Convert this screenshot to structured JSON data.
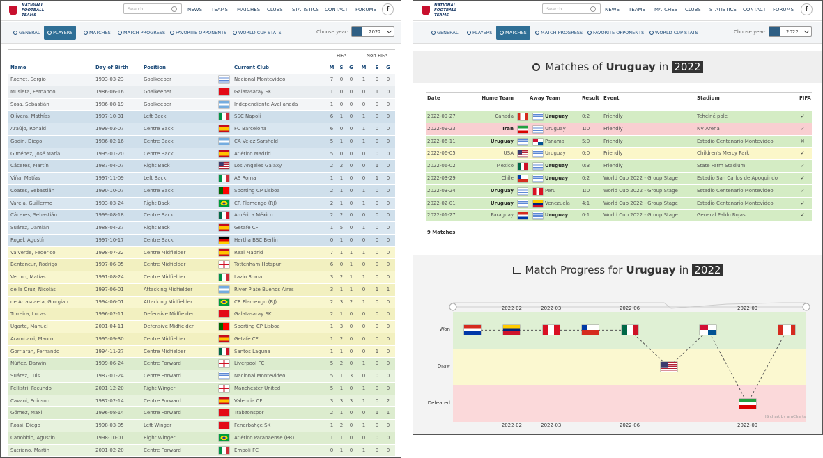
{
  "nav": {
    "logo": [
      "NATIONAL",
      "FOOTBALL",
      "TEAMS"
    ],
    "search": "Search...",
    "links": [
      "NEWS",
      "TEAMS",
      "MATCHES",
      "CLUBS",
      "STATISTICS",
      "CONTACT",
      "FORUMS"
    ],
    "social": "f"
  },
  "tabs": {
    "items": [
      "GENERAL",
      "PLAYERS",
      "MATCHES",
      "MATCH PROGRESS",
      "FAVORITE OPPONENTS",
      "WORLD CUP STATS"
    ],
    "year_label": "Choose year:",
    "year": "2022"
  },
  "players": {
    "groups": [
      "FIFA",
      "Non FIFA"
    ],
    "columns": [
      "Name",
      "Day of Birth",
      "Position",
      "Current Club"
    ],
    "stat_columns": [
      "M",
      "S",
      "G",
      "M",
      "S",
      "G"
    ],
    "rows": [
      [
        "Rochet, Sergio",
        "1993-03-23",
        "Goalkeeper",
        "Nacional Montevideo",
        7,
        0,
        0,
        1,
        0,
        0
      ],
      [
        "Muslera, Fernando",
        "1986-06-16",
        "Goalkeeper",
        "Galatasaray SK",
        1,
        0,
        0,
        0,
        1,
        0
      ],
      [
        "Sosa, Sebastián",
        "1986-08-19",
        "Goalkeeper",
        "Independiente Avellaneda",
        1,
        0,
        0,
        0,
        0,
        0
      ],
      [
        "Olivera, Mathías",
        "1997-10-31",
        "Left Back",
        "SSC Napoli",
        6,
        1,
        0,
        1,
        0,
        0
      ],
      [
        "Araújo, Ronald",
        "1999-03-07",
        "Centre Back",
        "FC Barcelona",
        6,
        0,
        0,
        1,
        0,
        0
      ],
      [
        "Godín, Diego",
        "1986-02-16",
        "Centre Back",
        "CA Vélez Sarsfield",
        5,
        1,
        0,
        1,
        0,
        0
      ],
      [
        "Giménez, José María",
        "1995-01-20",
        "Centre Back",
        "Atlético Madrid",
        5,
        0,
        0,
        0,
        0,
        0
      ],
      [
        "Cáceres, Martín",
        "1987-04-07",
        "Right Back",
        "Los Angeles Galaxy",
        2,
        2,
        0,
        0,
        1,
        0
      ],
      [
        "Viña, Matías",
        "1997-11-09",
        "Left Back",
        "AS Roma",
        1,
        1,
        0,
        0,
        1,
        0
      ],
      [
        "Coates, Sebastián",
        "1990-10-07",
        "Centre Back",
        "Sporting CP Lisboa",
        2,
        1,
        0,
        1,
        0,
        0
      ],
      [
        "Varela, Guillermo",
        "1993-03-24",
        "Right Back",
        "CR Flamengo (RJ)",
        2,
        1,
        0,
        1,
        0,
        0
      ],
      [
        "Cáceres, Sebastián",
        "1999-08-18",
        "Centre Back",
        "América México",
        2,
        2,
        0,
        0,
        0,
        0
      ],
      [
        "Suárez, Damián",
        "1988-04-27",
        "Right Back",
        "Getafe CF",
        1,
        5,
        0,
        1,
        0,
        0
      ],
      [
        "Rogel, Agustín",
        "1997-10-17",
        "Centre Back",
        "Hertha BSC Berlin",
        0,
        1,
        0,
        0,
        0,
        0
      ],
      [
        "Valverde, Federico",
        "1998-07-22",
        "Centre Midfielder",
        "Real Madrid",
        7,
        1,
        1,
        1,
        0,
        0
      ],
      [
        "Bentancur, Rodrigo",
        "1997-06-05",
        "Centre Midfielder",
        "Tottenham Hotspur",
        6,
        0,
        1,
        0,
        0,
        0
      ],
      [
        "Vecino, Matías",
        "1991-08-24",
        "Centre Midfielder",
        "Lazio Roma",
        3,
        2,
        1,
        1,
        0,
        0
      ],
      [
        "de la Cruz, Nicolás",
        "1997-06-01",
        "Attacking Midfielder",
        "River Plate Buenos Aires",
        3,
        1,
        1,
        0,
        1,
        1
      ],
      [
        "de Arrascaeta, Giorgian",
        "1994-06-01",
        "Attacking Midfielder",
        "CR Flamengo (RJ)",
        2,
        3,
        2,
        1,
        0,
        0
      ],
      [
        "Torreira, Lucas",
        "1996-02-11",
        "Defensive Midfielder",
        "Galatasaray SK",
        2,
        1,
        0,
        0,
        0,
        0
      ],
      [
        "Ugarte, Manuel",
        "2001-04-11",
        "Defensive Midfielder",
        "Sporting CP Lisboa",
        1,
        3,
        0,
        0,
        0,
        0
      ],
      [
        "Arambarri, Mauro",
        "1995-09-30",
        "Centre Midfielder",
        "Getafe CF",
        1,
        2,
        0,
        0,
        0,
        0
      ],
      [
        "Gorriarán, Fernando",
        "1994-11-27",
        "Centre Midfielder",
        "Santos Laguna",
        1,
        1,
        0,
        0,
        1,
        0
      ],
      [
        "Núñez, Darwin",
        "1999-06-24",
        "Centre Forward",
        "Liverpool FC",
        5,
        2,
        0,
        1,
        0,
        0
      ],
      [
        "Suárez, Luis",
        "1987-01-24",
        "Centre Forward",
        "Nacional Montevideo",
        5,
        1,
        3,
        0,
        0,
        0
      ],
      [
        "Pellistri, Facundo",
        "2001-12-20",
        "Right Winger",
        "Manchester United",
        5,
        1,
        0,
        1,
        0,
        0
      ],
      [
        "Cavani, Edinson",
        "1987-02-14",
        "Centre Forward",
        "Valencia CF",
        3,
        3,
        3,
        1,
        0,
        2
      ],
      [
        "Gómez, Maxi",
        "1996-08-14",
        "Centre Forward",
        "Trabzonspor",
        2,
        1,
        0,
        0,
        1,
        1
      ],
      [
        "Rossi, Diego",
        "1998-03-05",
        "Left Winger",
        "Fenerbahçe SK",
        1,
        2,
        0,
        1,
        0,
        0
      ],
      [
        "Canobbio, Agustín",
        "1998-10-01",
        "Right Winger",
        "Atlético Paranaense (PR)",
        1,
        1,
        0,
        0,
        0,
        0
      ],
      [
        "Satriano, Martín",
        "2001-02-20",
        "Centre Forward",
        "Empoli FC",
        0,
        1,
        0,
        1,
        0,
        0
      ]
    ]
  },
  "matches": {
    "title": {
      "prefix": "Matches of",
      "team": "Uruguay",
      "mid": "in",
      "year": "2022"
    },
    "columns": [
      "Date",
      "Home Team",
      "Away Team",
      "Result",
      "Event",
      "Stadium",
      "FIFA"
    ],
    "rows": [
      [
        "2022-09-27",
        "Canada",
        "Uruguay",
        "0:2",
        "Friendly",
        "Tehelné pole",
        "✓"
      ],
      [
        "2022-09-23",
        "Iran",
        "Uruguay",
        "1:0",
        "Friendly",
        "NV Arena",
        "✓"
      ],
      [
        "2022-06-11",
        "Uruguay",
        "Panama",
        "5:0",
        "Friendly",
        "Estadio Centenario Montevideo",
        "✕"
      ],
      [
        "2022-06-05",
        "USA",
        "Uruguay",
        "0:0",
        "Friendly",
        "Children's Mercy Park",
        "✓"
      ],
      [
        "2022-06-02",
        "Mexico",
        "Uruguay",
        "0:3",
        "Friendly",
        "State Farm Stadium",
        "✓"
      ],
      [
        "2022-03-29",
        "Chile",
        "Uruguay",
        "0:2",
        "World Cup 2022 - Group Stage",
        "Estadio San Carlos de Apoquindo",
        "✓"
      ],
      [
        "2022-03-24",
        "Uruguay",
        "Peru",
        "1:0",
        "World Cup 2022 - Group Stage",
        "Estadio Centenario Montevideo",
        "✓"
      ],
      [
        "2022-02-01",
        "Uruguay",
        "Venezuela",
        "4:1",
        "World Cup 2022 - Group Stage",
        "Estadio Centenario Montevideo",
        "✓"
      ],
      [
        "2022-01-27",
        "Paraguay",
        "Uruguay",
        "0:1",
        "World Cup 2022 - Group Stage",
        "General Pablo Rojas",
        "✓"
      ]
    ],
    "count": "9 Matches"
  },
  "progress": {
    "title": {
      "prefix": "Match Progress for",
      "team": "Uruguay",
      "mid": "in",
      "year": "2022"
    },
    "levels": [
      "Won",
      "Draw",
      "Defeated"
    ],
    "xlabels": [
      "2022-02",
      "2022-03",
      "2022-06",
      "2022-09"
    ],
    "credit": "JS chart by amCharts"
  }
}
